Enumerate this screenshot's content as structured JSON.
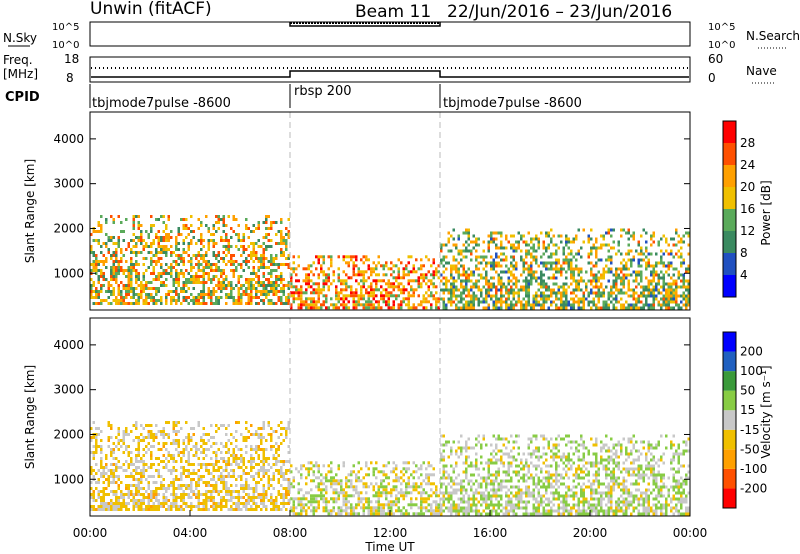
{
  "header": {
    "station": "Unwin (fitACF)",
    "beam": "Beam 11",
    "date_range": "22/Jun/2016 – 23/Jun/2016"
  },
  "nsky_panel": {
    "left_label": "N.Sky",
    "right_label": "N.Search",
    "left_ticks": [
      "10^5",
      "10^0"
    ],
    "right_ticks": [
      "10^5",
      "10^0"
    ]
  },
  "freq_panel": {
    "left_label_line1": "Freq.",
    "left_label_line2": "[MHz]",
    "right_label": "Nave",
    "left_ticks": [
      "18",
      "8"
    ],
    "right_ticks": [
      "60",
      "0"
    ]
  },
  "cpid_panel": {
    "label": "CPID",
    "segments": [
      {
        "label": "tbjmode7pulse -8600",
        "start_hour": 0,
        "end_hour": 8
      },
      {
        "label": "rbsp 200",
        "start_hour": 8,
        "end_hour": 14
      },
      {
        "label": "tbjmode7pulse -8600",
        "start_hour": 14,
        "end_hour": 24
      }
    ]
  },
  "colors": {
    "power": [
      "#0000ff",
      "#2050c0",
      "#3a8a60",
      "#5aaa5a",
      "#f0c000",
      "#ffa000",
      "#ff5000",
      "#ff0000"
    ],
    "velocity": [
      "#ff0000",
      "#ff5000",
      "#ffa000",
      "#f0c000",
      "#c8c8c8",
      "#88cc44",
      "#3a9a3a",
      "#2060c0",
      "#0000ff"
    ]
  },
  "power_colorbar": {
    "label": "Power [dB]",
    "ticks": [
      "4",
      "8",
      "12",
      "16",
      "20",
      "24",
      "28"
    ]
  },
  "velocity_colorbar": {
    "label": "Velocity [m s⁻¹]",
    "ticks": [
      "-200",
      "-100",
      "-50",
      "-15",
      "15",
      "50",
      "100",
      "200"
    ]
  },
  "chart_data": [
    {
      "type": "heatmap",
      "name": "Power",
      "ylabel": "Slant Range [km]",
      "ylim": [
        180,
        4600
      ],
      "xlim": [
        0,
        24
      ],
      "yticks": [
        1000,
        2000,
        3000,
        4000
      ],
      "clabel": "Power [dB]",
      "clim": [
        0,
        32
      ],
      "echo_regions": [
        {
          "t0": 0.0,
          "t1": 8.0,
          "r0": 300,
          "r1": 2300,
          "typical_value": 18
        },
        {
          "t0": 8.0,
          "t1": 14.0,
          "r0": 250,
          "r1": 1400,
          "typical_value": 22
        },
        {
          "t0": 14.0,
          "t1": 24.0,
          "r0": 250,
          "r1": 2000,
          "typical_value": 16
        }
      ]
    },
    {
      "type": "heatmap",
      "name": "Velocity",
      "ylabel": "Slant Range [km]",
      "xlabel": "Time UT",
      "ylim": [
        180,
        4600
      ],
      "xlim": [
        0,
        24
      ],
      "yticks": [
        1000,
        2000,
        3000,
        4000
      ],
      "xticks": [
        "00:00",
        "04:00",
        "08:00",
        "12:00",
        "16:00",
        "20:00",
        "00:00"
      ],
      "clabel": "Velocity [m s⁻¹]",
      "clim": [
        -200,
        200
      ],
      "echo_regions": [
        {
          "t0": 0.0,
          "t1": 8.0,
          "r0": 300,
          "r1": 2300,
          "typical_value": -20
        },
        {
          "t0": 8.0,
          "t1": 14.0,
          "r0": 250,
          "r1": 1400,
          "typical_value": 0
        },
        {
          "t0": 14.0,
          "t1": 24.0,
          "r0": 250,
          "r1": 2000,
          "typical_value": 10
        }
      ]
    }
  ]
}
